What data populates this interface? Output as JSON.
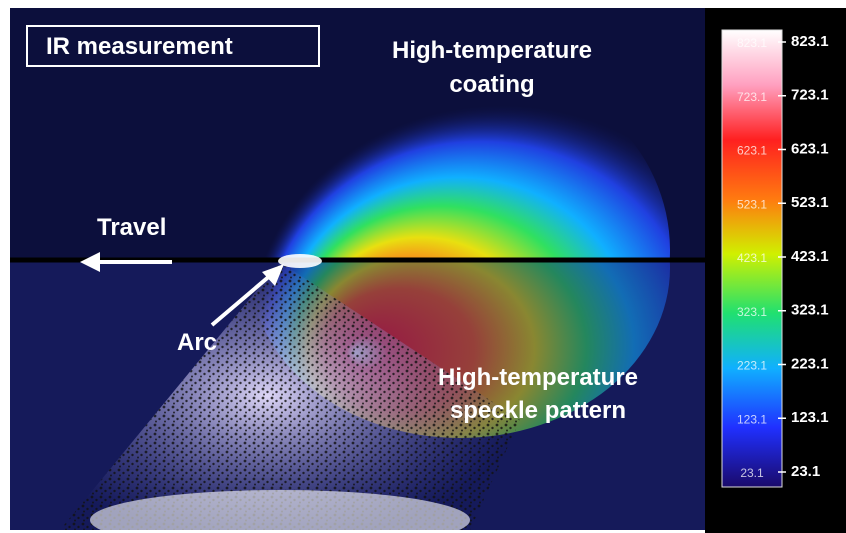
{
  "labels": {
    "box_title": "IR measurement",
    "coating": [
      "High-temperature",
      "coating"
    ],
    "travel": "Travel",
    "arc": "Arc",
    "speckle": [
      "High-temperature",
      "speckle pattern"
    ]
  },
  "colorbar": {
    "ticks": [
      823.1,
      723.1,
      623.1,
      523.1,
      423.1,
      323.1,
      223.1,
      123.1,
      23.1
    ]
  }
}
